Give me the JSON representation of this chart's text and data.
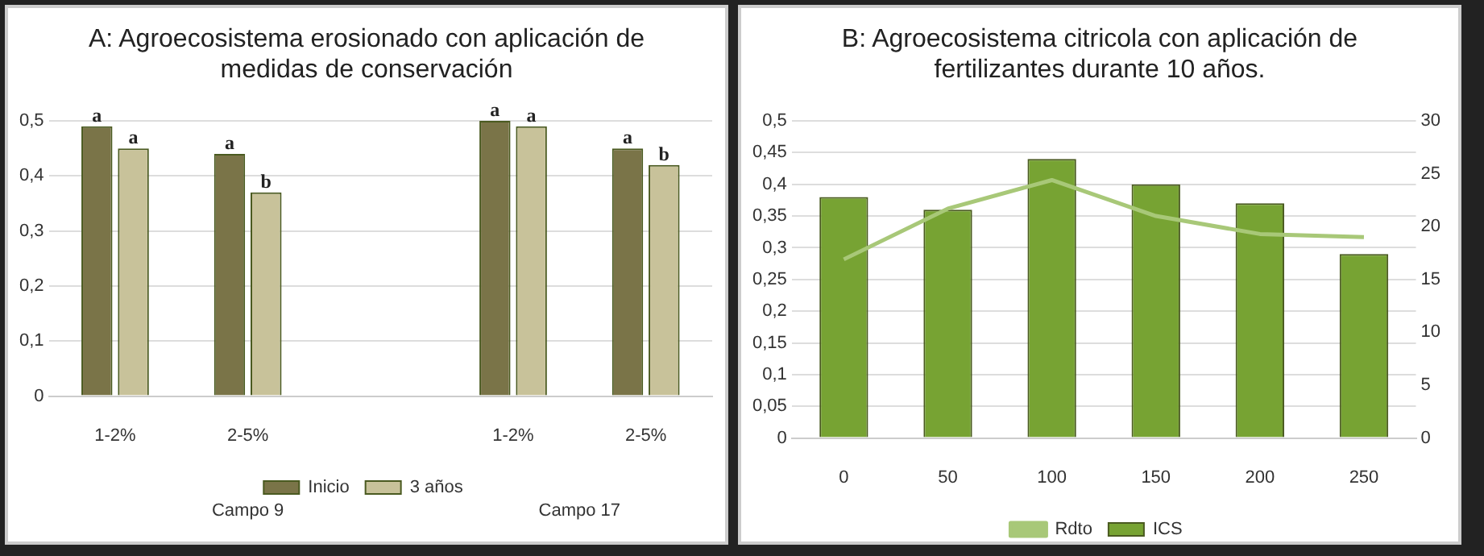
{
  "chart_data": [
    {
      "type": "bar",
      "title": "A: Agroecosistema erosionado con aplicación de medidas de conservación",
      "categories": [
        "1-2%",
        "2-5%",
        null,
        "1-2%",
        "2-5%"
      ],
      "series": [
        {
          "name": "Inicio",
          "color": "#7a7448",
          "values": [
            0.49,
            0.44,
            null,
            0.5,
            0.45
          ],
          "value_labels": [
            "a",
            "a",
            null,
            "a",
            "a"
          ]
        },
        {
          "name": "3 años",
          "color": "#c8c29a",
          "values": [
            0.45,
            0.37,
            null,
            0.49,
            0.42
          ],
          "value_labels": [
            "a",
            "b",
            null,
            "a",
            "b"
          ]
        }
      ],
      "annotations": [
        "Campo 9",
        "Campo 17"
      ],
      "ylim": [
        0,
        0.5
      ],
      "yticks": [
        0,
        {
          "value": 0.1,
          "label": "0,1"
        },
        {
          "value": 0.2,
          "label": "0,2"
        },
        {
          "value": 0.3,
          "label": "0,3"
        },
        {
          "value": 0.4,
          "label": "0,4"
        },
        {
          "value": 0.5,
          "label": "0,5"
        }
      ],
      "grid": "y",
      "legend": "bottom"
    },
    {
      "type": "bar",
      "title": "B: Agroecosistema citricola con aplicación de fertilizantes durante 10 años.",
      "categories": [
        "0",
        "50",
        "100",
        "150",
        "200",
        "250"
      ],
      "series": [
        {
          "name": "ICS",
          "color": "#77a333",
          "values": [
            0.38,
            0.36,
            0.44,
            0.4,
            0.37,
            0.29
          ]
        },
        {
          "name": "Rdto",
          "type": "line",
          "axis": "y2",
          "color": "#a8c878",
          "values": [
            16.9,
            21.7,
            24.4,
            21.0,
            19.3,
            19.0
          ]
        }
      ],
      "ylim": [
        0,
        0.5
      ],
      "yticks": [
        0,
        {
          "value": 0.05,
          "label": "0,05"
        },
        {
          "value": 0.1,
          "label": "0,1"
        },
        {
          "value": 0.15,
          "label": "0,15"
        },
        {
          "value": 0.2,
          "label": "0,2"
        },
        {
          "value": 0.25,
          "label": "0,25"
        },
        {
          "value": 0.3,
          "label": "0,3"
        },
        {
          "value": 0.35,
          "label": "0,35"
        },
        {
          "value": 0.4,
          "label": "0,4"
        },
        {
          "value": 0.45,
          "label": "0,45"
        },
        {
          "value": 0.5,
          "label": "0,5"
        }
      ],
      "y2lim": [
        0,
        30
      ],
      "y2ticks": [
        0,
        5,
        10,
        15,
        20,
        25,
        30
      ],
      "grid": "y",
      "legend": "bottom",
      "marker": "none"
    }
  ]
}
